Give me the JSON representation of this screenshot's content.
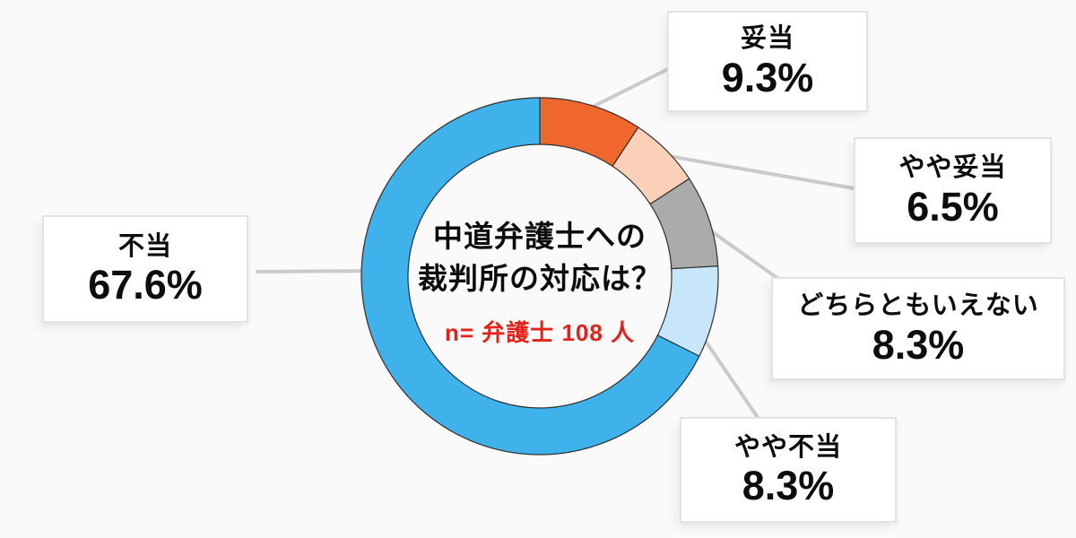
{
  "chart_data": {
    "type": "pie",
    "variant": "donut",
    "title_lines": [
      "中道弁護士への",
      "裁判所の対応は？"
    ],
    "sample_note": "n= 弁護士 108 人",
    "direction": "clockwise",
    "start_angle_deg": 0,
    "total": 100.0,
    "legend_position": "callout-boxes",
    "segments": [
      {
        "label": "妥当",
        "value": 9.3,
        "pct_text": "9.3%",
        "color": "#F0672D"
      },
      {
        "label": "やや妥当",
        "value": 6.5,
        "pct_text": "6.5%",
        "color": "#FAD1B8"
      },
      {
        "label": "どちらともいえない",
        "value": 8.3,
        "pct_text": "8.3%",
        "color": "#ABABAB"
      },
      {
        "label": "やや不当",
        "value": 8.3,
        "pct_text": "8.3%",
        "color": "#C7E6FA"
      },
      {
        "label": "不当",
        "value": 67.6,
        "pct_text": "67.6%",
        "color": "#3FB1EB"
      }
    ]
  },
  "colors": {
    "background": "#FAFAFB",
    "text": "#0D0D0D",
    "note_red": "#E3221A",
    "segment_outline": "#2F2F2F",
    "leader_line": "#CACACC",
    "box_border": "#E3E3E6"
  }
}
